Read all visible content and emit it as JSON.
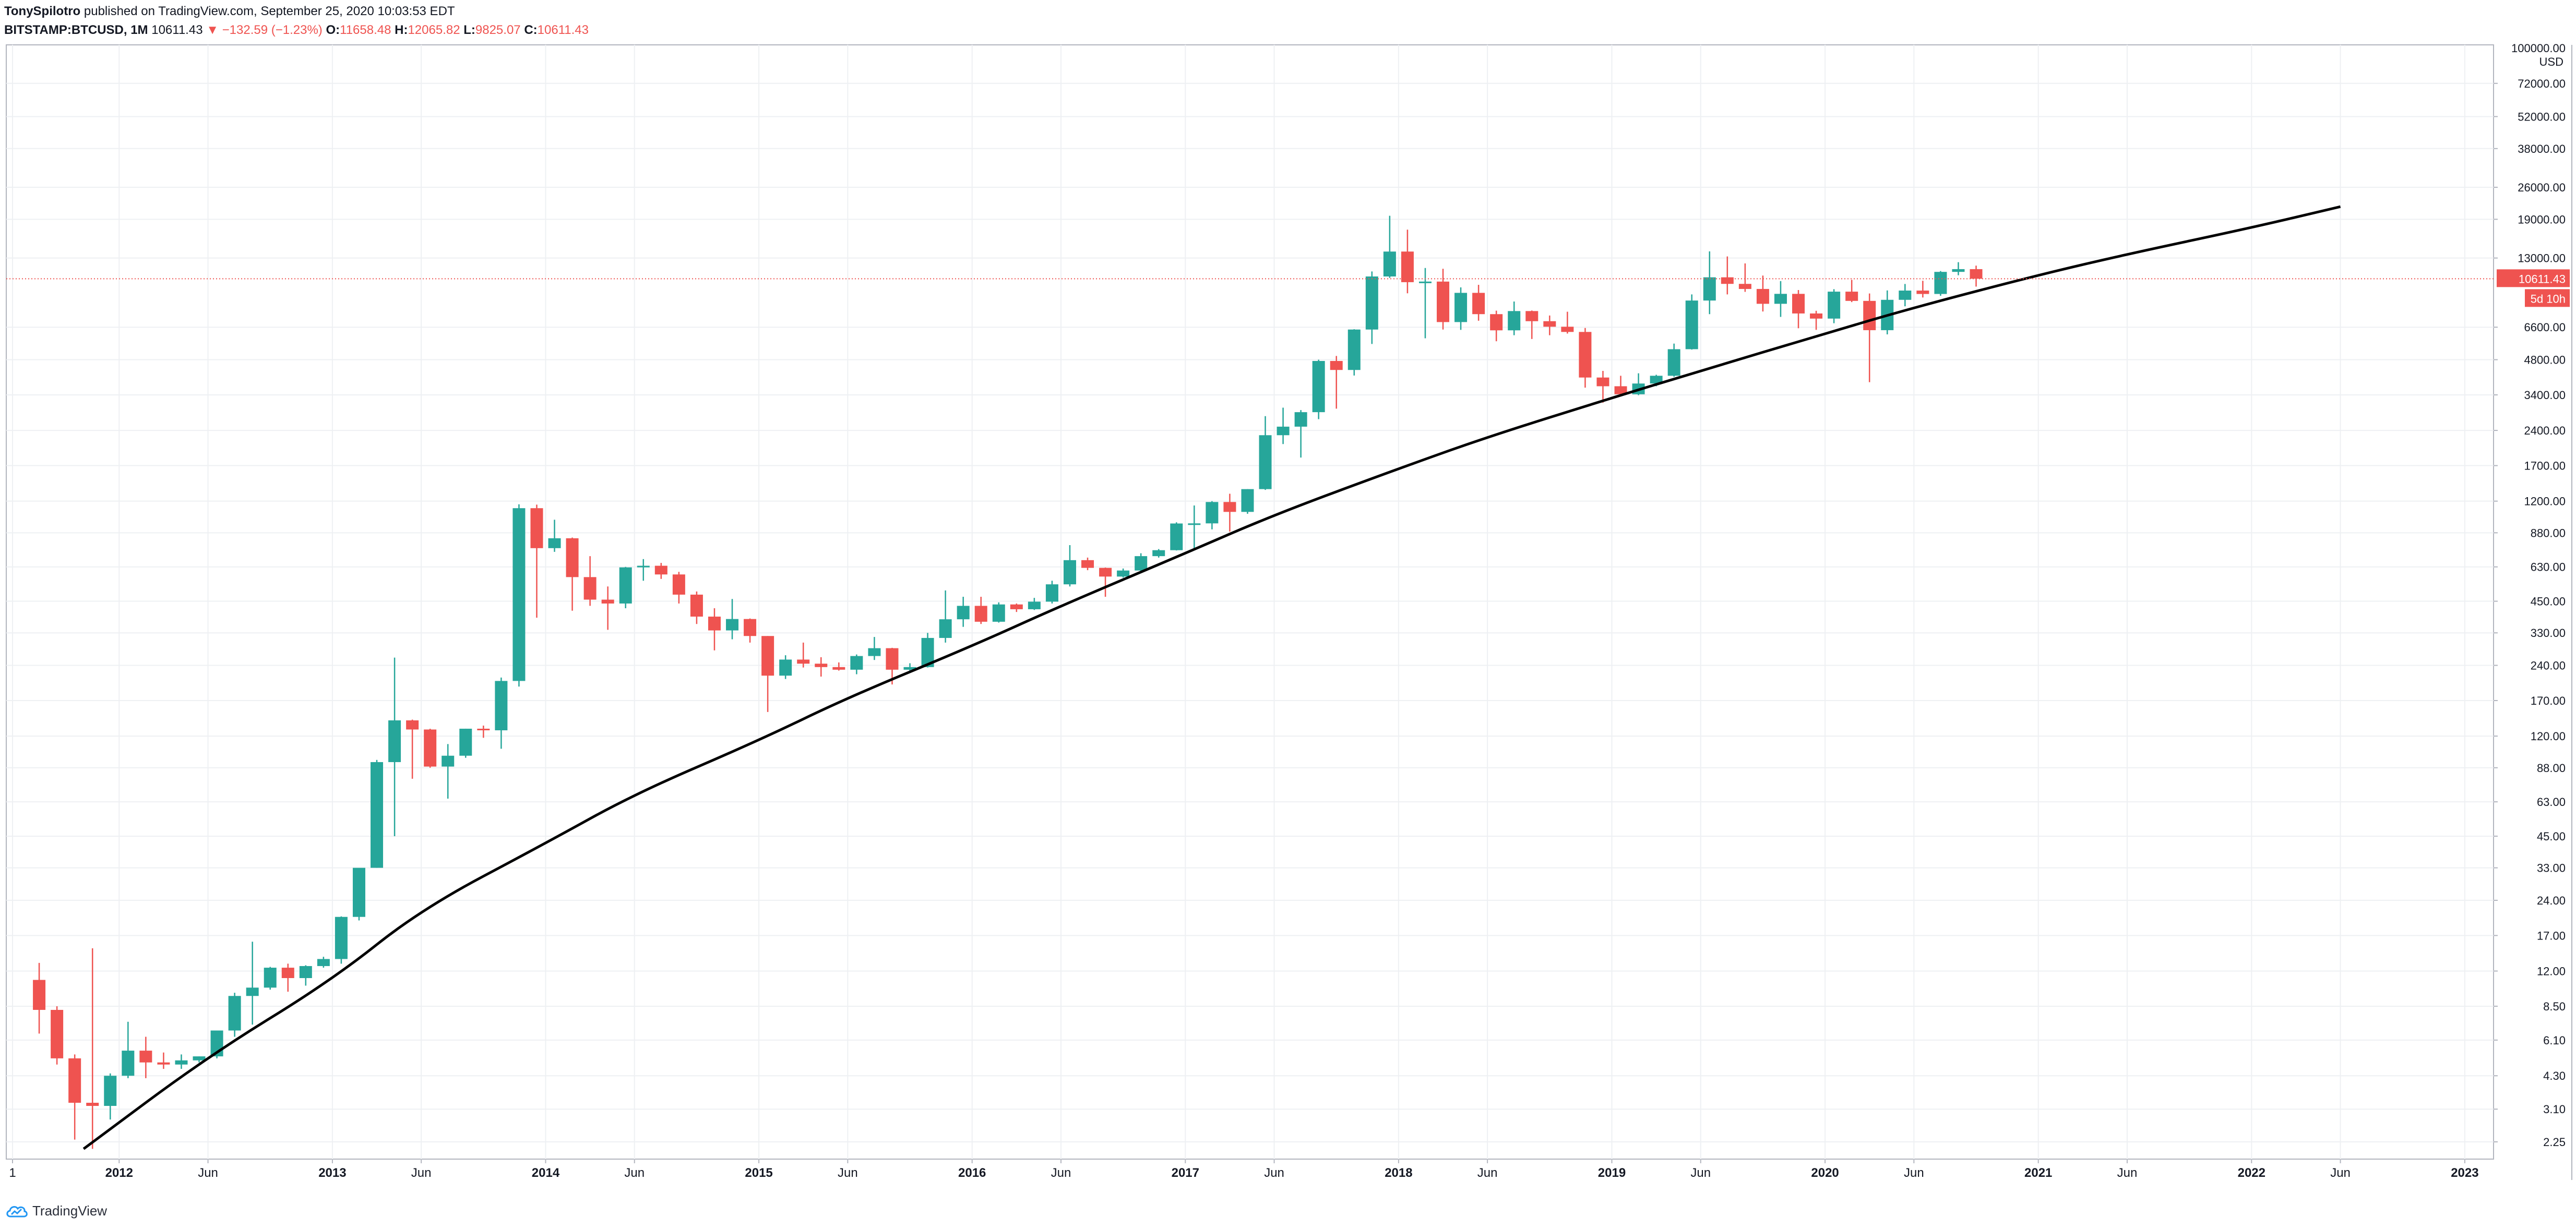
{
  "header": {
    "author": "TonySpilotro",
    "published_text": "published on TradingView.com, September 25, 2020 10:03:53 EDT",
    "symbol": "BITSTAMP:BTCUSD, 1M",
    "last": "10611.43",
    "change": "▼ −132.59 (−1.23%)",
    "o_label": "O:",
    "o_value": "11658.48",
    "h_label": "H:",
    "h_value": "12065.82",
    "l_label": "L:",
    "l_value": "9825.07",
    "c_label": "C:",
    "c_value": "10611.43"
  },
  "footer": {
    "brand": "TradingView"
  },
  "colors": {
    "up": "#26a69a",
    "down": "#ef5350",
    "grid": "#eef0f3",
    "trendline": "#000000"
  },
  "chart_data": {
    "type": "candlestick",
    "scale": "log",
    "ylim": [
      1.9,
      105000
    ],
    "y_unit": "USD",
    "y_ticks": [
      "72000.00",
      "52000.00",
      "38000.00",
      "26000.00",
      "19000.00",
      "13000.00",
      "6600.00",
      "4800.00",
      "3400.00",
      "2400.00",
      "1700.00",
      "1200.00",
      "880.00",
      "630.00",
      "450.00",
      "330.00",
      "240.00",
      "170.00",
      "120.00",
      "88.00",
      "63.00",
      "45.00",
      "33.00",
      "24.00",
      "17.00",
      "12.00",
      "8.50",
      "6.10",
      "4.30",
      "3.10",
      "2.25"
    ],
    "y_top_label": "100000.00",
    "x_labels": [
      {
        "label": "1",
        "date": "2011-07"
      },
      {
        "label": "2012",
        "date": "2012-01"
      },
      {
        "label": "Jun",
        "date": "2012-06"
      },
      {
        "label": "2013",
        "date": "2013-01"
      },
      {
        "label": "Jun",
        "date": "2013-06"
      },
      {
        "label": "2014",
        "date": "2014-01"
      },
      {
        "label": "Jun",
        "date": "2014-06"
      },
      {
        "label": "2015",
        "date": "2015-01"
      },
      {
        "label": "Jun",
        "date": "2015-06"
      },
      {
        "label": "2016",
        "date": "2016-01"
      },
      {
        "label": "Jun",
        "date": "2016-06"
      },
      {
        "label": "2017",
        "date": "2017-01"
      },
      {
        "label": "Jun",
        "date": "2017-06"
      },
      {
        "label": "2018",
        "date": "2018-01"
      },
      {
        "label": "Jun",
        "date": "2018-06"
      },
      {
        "label": "2019",
        "date": "2019-01"
      },
      {
        "label": "Jun",
        "date": "2019-06"
      },
      {
        "label": "2020",
        "date": "2020-01"
      },
      {
        "label": "Jun",
        "date": "2020-06"
      },
      {
        "label": "2021",
        "date": "2021-01"
      },
      {
        "label": "Jun",
        "date": "2021-06"
      },
      {
        "label": "2022",
        "date": "2022-01"
      },
      {
        "label": "Jun",
        "date": "2022-06"
      },
      {
        "label": "2023",
        "date": "2023-01"
      }
    ],
    "last_price_label": "10611.43",
    "countdown_label": "5d 10h",
    "candles": [
      {
        "date": "2011-08",
        "o": 11.0,
        "h": 13.0,
        "l": 6.5,
        "c": 8.2
      },
      {
        "date": "2011-09",
        "o": 8.2,
        "h": 8.5,
        "l": 4.8,
        "c": 5.1
      },
      {
        "date": "2011-10",
        "o": 5.1,
        "h": 5.3,
        "l": 2.3,
        "c": 3.3
      },
      {
        "date": "2011-11",
        "o": 3.3,
        "h": 15.0,
        "l": 2.1,
        "c": 3.2
      },
      {
        "date": "2011-12",
        "o": 3.2,
        "h": 4.4,
        "l": 2.8,
        "c": 4.3
      },
      {
        "date": "2012-01",
        "o": 4.3,
        "h": 7.3,
        "l": 4.2,
        "c": 5.5
      },
      {
        "date": "2012-02",
        "o": 5.5,
        "h": 6.3,
        "l": 4.2,
        "c": 4.9
      },
      {
        "date": "2012-03",
        "o": 4.9,
        "h": 5.4,
        "l": 4.6,
        "c": 4.8
      },
      {
        "date": "2012-04",
        "o": 4.8,
        "h": 5.3,
        "l": 4.6,
        "c": 5.0
      },
      {
        "date": "2012-05",
        "o": 5.0,
        "h": 5.2,
        "l": 4.9,
        "c": 5.2
      },
      {
        "date": "2012-06",
        "o": 5.2,
        "h": 6.7,
        "l": 5.1,
        "c": 6.7
      },
      {
        "date": "2012-07",
        "o": 6.7,
        "h": 9.7,
        "l": 6.3,
        "c": 9.4
      },
      {
        "date": "2012-08",
        "o": 9.4,
        "h": 16.0,
        "l": 7.1,
        "c": 10.2
      },
      {
        "date": "2012-09",
        "o": 10.2,
        "h": 12.5,
        "l": 10.0,
        "c": 12.4
      },
      {
        "date": "2012-10",
        "o": 12.4,
        "h": 12.9,
        "l": 9.8,
        "c": 11.2
      },
      {
        "date": "2012-11",
        "o": 11.2,
        "h": 12.7,
        "l": 10.4,
        "c": 12.6
      },
      {
        "date": "2012-12",
        "o": 12.6,
        "h": 13.8,
        "l": 12.4,
        "c": 13.5
      },
      {
        "date": "2013-01",
        "o": 13.5,
        "h": 20.5,
        "l": 12.9,
        "c": 20.4
      },
      {
        "date": "2013-02",
        "o": 20.4,
        "h": 31.0,
        "l": 19.7,
        "c": 33.0
      },
      {
        "date": "2013-03",
        "o": 33.0,
        "h": 95.0,
        "l": 33.0,
        "c": 93.0
      },
      {
        "date": "2013-04",
        "o": 93.0,
        "h": 259.0,
        "l": 45.0,
        "c": 140.0
      },
      {
        "date": "2013-05",
        "o": 140.0,
        "h": 141.0,
        "l": 79.0,
        "c": 128.0
      },
      {
        "date": "2013-06",
        "o": 128.0,
        "h": 129.0,
        "l": 88.0,
        "c": 89.0
      },
      {
        "date": "2013-07",
        "o": 89.0,
        "h": 111.0,
        "l": 65.0,
        "c": 99.0
      },
      {
        "date": "2013-08",
        "o": 99.0,
        "h": 129.0,
        "l": 97.0,
        "c": 129.0
      },
      {
        "date": "2013-09",
        "o": 129.0,
        "h": 133.0,
        "l": 118.0,
        "c": 127.0
      },
      {
        "date": "2013-10",
        "o": 127.0,
        "h": 213.0,
        "l": 106.0,
        "c": 206.0
      },
      {
        "date": "2013-11",
        "o": 206.0,
        "h": 1163.0,
        "l": 195.0,
        "c": 1120.0
      },
      {
        "date": "2013-12",
        "o": 1120.0,
        "h": 1160.0,
        "l": 383.0,
        "c": 757.0
      },
      {
        "date": "2014-01",
        "o": 757.0,
        "h": 1000.0,
        "l": 730.0,
        "c": 834.0
      },
      {
        "date": "2014-02",
        "o": 834.0,
        "h": 840.0,
        "l": 410.0,
        "c": 570.0
      },
      {
        "date": "2014-03",
        "o": 570.0,
        "h": 700.0,
        "l": 430.0,
        "c": 457.0
      },
      {
        "date": "2014-04",
        "o": 457.0,
        "h": 520.0,
        "l": 340.0,
        "c": 440.0
      },
      {
        "date": "2014-05",
        "o": 440.0,
        "h": 630.0,
        "l": 420.0,
        "c": 627.0
      },
      {
        "date": "2014-06",
        "o": 627.0,
        "h": 680.0,
        "l": 550.0,
        "c": 637.0
      },
      {
        "date": "2014-07",
        "o": 637.0,
        "h": 655.0,
        "l": 560.0,
        "c": 585.0
      },
      {
        "date": "2014-08",
        "o": 585.0,
        "h": 600.0,
        "l": 440.0,
        "c": 480.0
      },
      {
        "date": "2014-09",
        "o": 480.0,
        "h": 495.0,
        "l": 360.0,
        "c": 387.0
      },
      {
        "date": "2014-10",
        "o": 387.0,
        "h": 420.0,
        "l": 278.0,
        "c": 338.0
      },
      {
        "date": "2014-11",
        "o": 338.0,
        "h": 460.0,
        "l": 310.0,
        "c": 378.0
      },
      {
        "date": "2014-12",
        "o": 378.0,
        "h": 380.0,
        "l": 300.0,
        "c": 320.0
      },
      {
        "date": "2015-01",
        "o": 320.0,
        "h": 320.0,
        "l": 152.0,
        "c": 217.0
      },
      {
        "date": "2015-02",
        "o": 217.0,
        "h": 265.0,
        "l": 210.0,
        "c": 254.0
      },
      {
        "date": "2015-03",
        "o": 254.0,
        "h": 300.0,
        "l": 235.0,
        "c": 244.0
      },
      {
        "date": "2015-04",
        "o": 244.0,
        "h": 260.0,
        "l": 215.0,
        "c": 236.0
      },
      {
        "date": "2015-05",
        "o": 236.0,
        "h": 247.0,
        "l": 228.0,
        "c": 230.0
      },
      {
        "date": "2015-06",
        "o": 230.0,
        "h": 267.0,
        "l": 220.0,
        "c": 263.0
      },
      {
        "date": "2015-07",
        "o": 263.0,
        "h": 317.0,
        "l": 253.0,
        "c": 284.0
      },
      {
        "date": "2015-08",
        "o": 284.0,
        "h": 285.0,
        "l": 199.0,
        "c": 230.0
      },
      {
        "date": "2015-09",
        "o": 230.0,
        "h": 245.0,
        "l": 225.0,
        "c": 236.0
      },
      {
        "date": "2015-10",
        "o": 236.0,
        "h": 330.0,
        "l": 235.0,
        "c": 314.0
      },
      {
        "date": "2015-11",
        "o": 314.0,
        "h": 500.0,
        "l": 300.0,
        "c": 377.0
      },
      {
        "date": "2015-12",
        "o": 377.0,
        "h": 470.0,
        "l": 350.0,
        "c": 430.0
      },
      {
        "date": "2016-01",
        "o": 430.0,
        "h": 470.0,
        "l": 360.0,
        "c": 368.0
      },
      {
        "date": "2016-02",
        "o": 368.0,
        "h": 445.0,
        "l": 365.0,
        "c": 436.0
      },
      {
        "date": "2016-03",
        "o": 436.0,
        "h": 440.0,
        "l": 405.0,
        "c": 416.0
      },
      {
        "date": "2016-04",
        "o": 416.0,
        "h": 465.0,
        "l": 413.0,
        "c": 448.0
      },
      {
        "date": "2016-05",
        "o": 448.0,
        "h": 550.0,
        "l": 440.0,
        "c": 531.0
      },
      {
        "date": "2016-06",
        "o": 531.0,
        "h": 780.0,
        "l": 520.0,
        "c": 673.0
      },
      {
        "date": "2016-07",
        "o": 673.0,
        "h": 690.0,
        "l": 610.0,
        "c": 624.0
      },
      {
        "date": "2016-08",
        "o": 624.0,
        "h": 626.0,
        "l": 470.0,
        "c": 573.0
      },
      {
        "date": "2016-09",
        "o": 573.0,
        "h": 620.0,
        "l": 567.0,
        "c": 608.0
      },
      {
        "date": "2016-10",
        "o": 608.0,
        "h": 720.0,
        "l": 600.0,
        "c": 700.0
      },
      {
        "date": "2016-11",
        "o": 700.0,
        "h": 750.0,
        "l": 690.0,
        "c": 742.0
      },
      {
        "date": "2016-12",
        "o": 742.0,
        "h": 975.0,
        "l": 740.0,
        "c": 964.0
      },
      {
        "date": "2017-01",
        "o": 964.0,
        "h": 1150.0,
        "l": 750.0,
        "c": 965.0
      },
      {
        "date": "2017-02",
        "o": 965.0,
        "h": 1200.0,
        "l": 910.0,
        "c": 1190.0
      },
      {
        "date": "2017-03",
        "o": 1190.0,
        "h": 1290.0,
        "l": 890.0,
        "c": 1080.0
      },
      {
        "date": "2017-04",
        "o": 1080.0,
        "h": 1350.0,
        "l": 1060.0,
        "c": 1350.0
      },
      {
        "date": "2017-05",
        "o": 1350.0,
        "h": 2760.0,
        "l": 1340.0,
        "c": 2290.0
      },
      {
        "date": "2017-06",
        "o": 2290.0,
        "h": 3000.0,
        "l": 2100.0,
        "c": 2490.0
      },
      {
        "date": "2017-07",
        "o": 2490.0,
        "h": 2930.0,
        "l": 1840.0,
        "c": 2870.0
      },
      {
        "date": "2017-08",
        "o": 2870.0,
        "h": 4800.0,
        "l": 2680.0,
        "c": 4740.0
      },
      {
        "date": "2017-09",
        "o": 4740.0,
        "h": 4980.0,
        "l": 2970.0,
        "c": 4340.0
      },
      {
        "date": "2017-10",
        "o": 4340.0,
        "h": 6470.0,
        "l": 4110.0,
        "c": 6450.0
      },
      {
        "date": "2017-11",
        "o": 6450.0,
        "h": 11400.0,
        "l": 5600.0,
        "c": 10850.0
      },
      {
        "date": "2017-12",
        "o": 10850.0,
        "h": 19666.0,
        "l": 10700.0,
        "c": 13850.0
      },
      {
        "date": "2018-01",
        "o": 13850.0,
        "h": 17170.0,
        "l": 9200.0,
        "c": 10260.0
      },
      {
        "date": "2018-02",
        "o": 10260.0,
        "h": 11790.0,
        "l": 5920.0,
        "c": 10320.0
      },
      {
        "date": "2018-03",
        "o": 10320.0,
        "h": 11700.0,
        "l": 6450.0,
        "c": 6940.0
      },
      {
        "date": "2018-04",
        "o": 6940.0,
        "h": 9750.0,
        "l": 6430.0,
        "c": 9240.0
      },
      {
        "date": "2018-05",
        "o": 9240.0,
        "h": 10000.0,
        "l": 7030.0,
        "c": 7500.0
      },
      {
        "date": "2018-06",
        "o": 7500.0,
        "h": 7760.0,
        "l": 5750.0,
        "c": 6400.0
      },
      {
        "date": "2018-07",
        "o": 6400.0,
        "h": 8490.0,
        "l": 6100.0,
        "c": 7730.0
      },
      {
        "date": "2018-08",
        "o": 7730.0,
        "h": 7770.0,
        "l": 5880.0,
        "c": 7000.0
      },
      {
        "date": "2018-09",
        "o": 7000.0,
        "h": 7400.0,
        "l": 6100.0,
        "c": 6630.0
      },
      {
        "date": "2018-10",
        "o": 6630.0,
        "h": 7680.0,
        "l": 6200.0,
        "c": 6300.0
      },
      {
        "date": "2018-11",
        "o": 6300.0,
        "h": 6550.0,
        "l": 3650.0,
        "c": 4030.0
      },
      {
        "date": "2018-12",
        "o": 4030.0,
        "h": 4300.0,
        "l": 3150.0,
        "c": 3700.0
      },
      {
        "date": "2019-01",
        "o": 3700.0,
        "h": 4100.0,
        "l": 3350.0,
        "c": 3420.0
      },
      {
        "date": "2019-02",
        "o": 3420.0,
        "h": 4200.0,
        "l": 3390.0,
        "c": 3800.0
      },
      {
        "date": "2019-03",
        "o": 3800.0,
        "h": 4140.0,
        "l": 3700.0,
        "c": 4100.0
      },
      {
        "date": "2019-04",
        "o": 4100.0,
        "h": 5620.0,
        "l": 4060.0,
        "c": 5320.0
      },
      {
        "date": "2019-05",
        "o": 5320.0,
        "h": 9100.0,
        "l": 5300.0,
        "c": 8570.0
      },
      {
        "date": "2019-06",
        "o": 8570.0,
        "h": 13880.0,
        "l": 7500.0,
        "c": 10760.0
      },
      {
        "date": "2019-07",
        "o": 10760.0,
        "h": 13200.0,
        "l": 9100.0,
        "c": 10090.0
      },
      {
        "date": "2019-08",
        "o": 10090.0,
        "h": 12330.0,
        "l": 9330.0,
        "c": 9600.0
      },
      {
        "date": "2019-09",
        "o": 9600.0,
        "h": 10950.0,
        "l": 7700.0,
        "c": 8300.0
      },
      {
        "date": "2019-10",
        "o": 8300.0,
        "h": 10370.0,
        "l": 7300.0,
        "c": 9150.0
      },
      {
        "date": "2019-11",
        "o": 9150.0,
        "h": 9500.0,
        "l": 6530.0,
        "c": 7550.0
      },
      {
        "date": "2019-12",
        "o": 7550.0,
        "h": 7750.0,
        "l": 6430.0,
        "c": 7180.0
      },
      {
        "date": "2020-01",
        "o": 7180.0,
        "h": 9580.0,
        "l": 6860.0,
        "c": 9350.0
      },
      {
        "date": "2020-02",
        "o": 9350.0,
        "h": 10500.0,
        "l": 8440.0,
        "c": 8540.0
      },
      {
        "date": "2020-03",
        "o": 8540.0,
        "h": 9180.0,
        "l": 3850.0,
        "c": 6410.0
      },
      {
        "date": "2020-04",
        "o": 6410.0,
        "h": 9460.0,
        "l": 6150.0,
        "c": 8630.0
      },
      {
        "date": "2020-05",
        "o": 8630.0,
        "h": 10080.0,
        "l": 8100.0,
        "c": 9450.0
      },
      {
        "date": "2020-06",
        "o": 9450.0,
        "h": 10400.0,
        "l": 8830.0,
        "c": 9140.0
      },
      {
        "date": "2020-07",
        "o": 9140.0,
        "h": 11440.0,
        "l": 8980.0,
        "c": 11350.0
      },
      {
        "date": "2020-08",
        "o": 11350.0,
        "h": 12480.0,
        "l": 10980.0,
        "c": 11658.0
      },
      {
        "date": "2020-09",
        "o": 11658.48,
        "h": 12065.82,
        "l": 9825.07,
        "c": 10611.43
      }
    ],
    "trendline": [
      {
        "date": "2011-11",
        "v": 2.1
      },
      {
        "date": "2012-06",
        "v": 5.2
      },
      {
        "date": "2013-01",
        "v": 11.0
      },
      {
        "date": "2013-06",
        "v": 22.0
      },
      {
        "date": "2014-01",
        "v": 42.0
      },
      {
        "date": "2014-06",
        "v": 68.0
      },
      {
        "date": "2015-01",
        "v": 115.0
      },
      {
        "date": "2015-06",
        "v": 175.0
      },
      {
        "date": "2016-01",
        "v": 290.0
      },
      {
        "date": "2016-06",
        "v": 430.0
      },
      {
        "date": "2017-01",
        "v": 720.0
      },
      {
        "date": "2017-06",
        "v": 1050.0
      },
      {
        "date": "2018-01",
        "v": 1650.0
      },
      {
        "date": "2018-06",
        "v": 2250.0
      },
      {
        "date": "2019-01",
        "v": 3300.0
      },
      {
        "date": "2019-06",
        "v": 4300.0
      },
      {
        "date": "2020-01",
        "v": 6200.0
      },
      {
        "date": "2020-06",
        "v": 8000.0
      },
      {
        "date": "2021-01",
        "v": 11000.0
      },
      {
        "date": "2021-06",
        "v": 13500.0
      },
      {
        "date": "2022-01",
        "v": 17500.0
      },
      {
        "date": "2022-06",
        "v": 21500.0
      }
    ]
  }
}
